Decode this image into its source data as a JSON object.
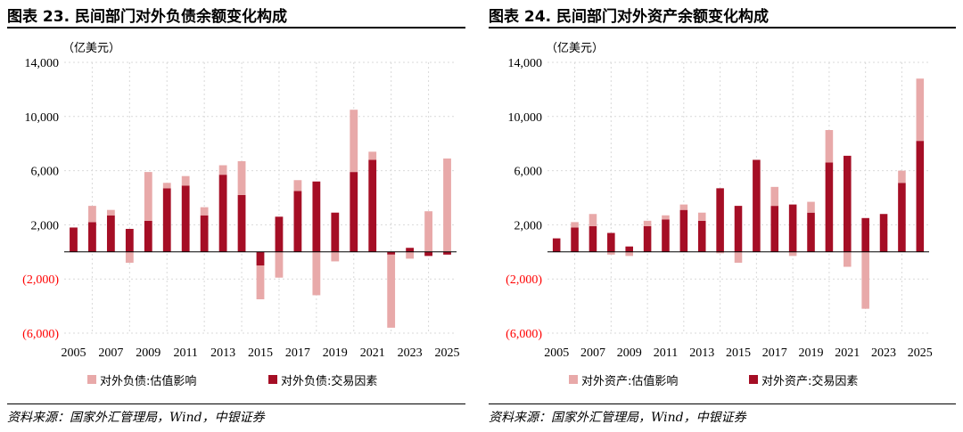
{
  "colors": {
    "valuation": "#e8a9a9",
    "transaction": "#a50e25",
    "negative_tick": "#ff0000",
    "grid": "#d9d9d9"
  },
  "source_text": "资料来源：国家外汇管理局，Wind，中银证券",
  "chart_data": [
    {
      "type": "bar",
      "title": "图表 23.  民间部门对外负债余额变化构成",
      "ylabel": "（亿美元）",
      "ylim": [
        -6000,
        14000
      ],
      "yticks": [
        14000,
        10000,
        6000,
        2000,
        -2000,
        -6000
      ],
      "ytick_labels": [
        "14,000",
        "10,000",
        "6,000",
        "2,000",
        "(2,000)",
        "(6,000)"
      ],
      "x": [
        2005,
        2006,
        2007,
        2008,
        2009,
        2010,
        2011,
        2012,
        2013,
        2014,
        2015,
        2016,
        2017,
        2018,
        2019,
        2020,
        2021,
        2022,
        2023,
        2024,
        2025
      ],
      "xtick_labels": [
        "2005",
        "2007",
        "2009",
        "2011",
        "2013",
        "2015",
        "2017",
        "2019",
        "2021",
        "2023",
        "2025"
      ],
      "grid": true,
      "legend": "bottom",
      "stacked": true,
      "series": [
        {
          "name": "对外负债:估值影响",
          "values": [
            0,
            1200,
            400,
            -800,
            3600,
            400,
            700,
            600,
            700,
            2500,
            -2500,
            -1900,
            800,
            -3200,
            -700,
            4600,
            600,
            -5400,
            -500,
            3000,
            6900
          ]
        },
        {
          "name": "对外负债:交易因素",
          "values": [
            1800,
            2200,
            2700,
            1700,
            2300,
            4700,
            4900,
            2700,
            5700,
            4200,
            -1000,
            2600,
            4500,
            5200,
            2900,
            5900,
            6800,
            -200,
            300,
            -300,
            -200
          ]
        }
      ]
    },
    {
      "type": "bar",
      "title": "图表 24.  民间部门对外资产余额变化构成",
      "ylabel": "（亿美元）",
      "ylim": [
        -6000,
        14000
      ],
      "yticks": [
        14000,
        10000,
        6000,
        2000,
        -2000,
        -6000
      ],
      "ytick_labels": [
        "14,000",
        "10,000",
        "6,000",
        "2,000",
        "(2,000)",
        "(6,000)"
      ],
      "x": [
        2005,
        2006,
        2007,
        2008,
        2009,
        2010,
        2011,
        2012,
        2013,
        2014,
        2015,
        2016,
        2017,
        2018,
        2019,
        2020,
        2021,
        2022,
        2023,
        2024,
        2025
      ],
      "xtick_labels": [
        "2005",
        "2007",
        "2009",
        "2011",
        "2013",
        "2015",
        "2017",
        "2019",
        "2021",
        "2023",
        "2025"
      ],
      "grid": true,
      "legend": "bottom",
      "stacked": true,
      "series": [
        {
          "name": "对外资产:估值影响",
          "values": [
            0,
            400,
            900,
            -200,
            -300,
            400,
            300,
            400,
            600,
            -100,
            -800,
            0,
            1400,
            -300,
            800,
            2400,
            -1100,
            -4200,
            0,
            900,
            4600
          ]
        },
        {
          "name": "对外资产:交易因素",
          "values": [
            1000,
            1800,
            1900,
            1400,
            400,
            1900,
            2400,
            3100,
            2300,
            4700,
            3400,
            6800,
            3400,
            3500,
            2900,
            6600,
            7100,
            2500,
            2800,
            5100,
            8200
          ]
        }
      ]
    }
  ]
}
